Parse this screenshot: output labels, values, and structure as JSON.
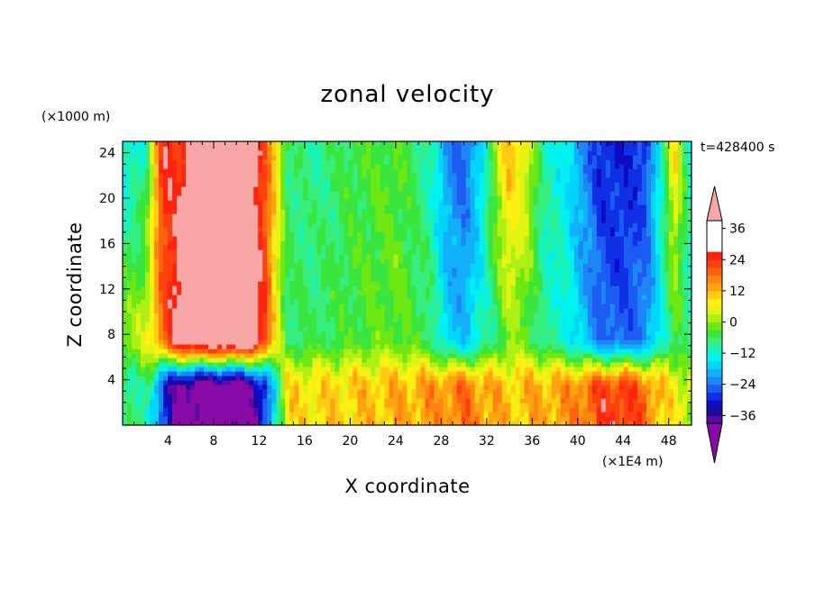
{
  "chart_data": {
    "type": "heatmap",
    "title": "zonal velocity",
    "xlabel": "X coordinate",
    "ylabel": "Z coordinate",
    "x_units": "(×1E4 m)",
    "y_units": "(×1000 m)",
    "time_label": "t=428400 s",
    "xlim": [
      0,
      50
    ],
    "ylim": [
      0,
      25
    ],
    "xticks": [
      4,
      8,
      12,
      16,
      20,
      24,
      28,
      32,
      36,
      40,
      44,
      48
    ],
    "yticks": [
      4,
      8,
      12,
      16,
      20,
      24
    ],
    "colorbar": {
      "levels": [
        -42,
        -39,
        -36,
        -33,
        -30,
        -27,
        -24,
        -21,
        -18,
        -15,
        -12,
        -9,
        -6,
        -3,
        0,
        3,
        6,
        9,
        12,
        15,
        18,
        21,
        24,
        27,
        30,
        33,
        36,
        39,
        42
      ],
      "colors": [
        "#8a0aa8",
        "#5e0aa2",
        "#1c0a9a",
        "#0c0cc4",
        "#1030e6",
        "#1c5cf2",
        "#1c86f6",
        "#12b0f8",
        "#00d6fa",
        "#00f2f0",
        "#18f2b4",
        "#36ee7e",
        "#3ae63e",
        "#6ee812",
        "#acf014",
        "#e2f414",
        "#fff012",
        "#ffcc12",
        "#ffa410",
        "#ff8410",
        "#ff620e",
        "#ff400e",
        "#ff2410",
        "#f8a6a6"
      ],
      "tick_labels": [
        "36",
        "24",
        "12",
        "0",
        "−12",
        "−24",
        "−36"
      ],
      "tick_values": [
        36,
        24,
        12,
        0,
        -12,
        -24,
        -36
      ],
      "extend": "both"
    },
    "column_profiles": [
      {
        "x": 0,
        "surface": -10,
        "mid": 0,
        "top": -15
      },
      {
        "x": 2,
        "surface": -6,
        "mid": 3,
        "top": -11
      },
      {
        "x": 3.5,
        "surface": -28,
        "mid": 18,
        "top": 26
      },
      {
        "x": 5,
        "surface": -40,
        "mid": 32,
        "top": 24
      },
      {
        "x": 7,
        "surface": -44,
        "mid": 36,
        "top": 36
      },
      {
        "x": 9,
        "surface": -45,
        "mid": 37,
        "top": 37
      },
      {
        "x": 11,
        "surface": -42,
        "mid": 36,
        "top": 36
      },
      {
        "x": 12.5,
        "surface": -30,
        "mid": 24,
        "top": 20
      },
      {
        "x": 13.5,
        "surface": -10,
        "mid": 5,
        "top": 9
      },
      {
        "x": 14.5,
        "surface": 8,
        "mid": -6,
        "top": -7
      },
      {
        "x": 17,
        "surface": 9,
        "mid": -6,
        "top": -9
      },
      {
        "x": 20,
        "surface": 10,
        "mid": -4,
        "top": -5
      },
      {
        "x": 24,
        "surface": 12,
        "mid": -2,
        "top": -3
      },
      {
        "x": 27,
        "surface": 14,
        "mid": -6,
        "top": -10
      },
      {
        "x": 28.5,
        "surface": 16,
        "mid": -16,
        "top": -22
      },
      {
        "x": 30,
        "surface": 18,
        "mid": -18,
        "top": -26
      },
      {
        "x": 31.5,
        "surface": 15,
        "mid": -12,
        "top": -16
      },
      {
        "x": 33,
        "surface": 12,
        "mid": -6,
        "top": 4
      },
      {
        "x": 34,
        "surface": 10,
        "mid": 0,
        "top": 13
      },
      {
        "x": 35.5,
        "surface": 12,
        "mid": -3,
        "top": 5
      },
      {
        "x": 37,
        "surface": 13,
        "mid": -9,
        "top": -10
      },
      {
        "x": 39,
        "surface": 14,
        "mid": -12,
        "top": -14
      },
      {
        "x": 40.5,
        "surface": 18,
        "mid": -18,
        "top": -22
      },
      {
        "x": 42,
        "surface": 22,
        "mid": -24,
        "top": -30
      },
      {
        "x": 44,
        "surface": 24,
        "mid": -26,
        "top": -30
      },
      {
        "x": 46,
        "surface": 18,
        "mid": -22,
        "top": -28
      },
      {
        "x": 47.5,
        "surface": 10,
        "mid": -12,
        "top": -8
      },
      {
        "x": 48.5,
        "surface": 6,
        "mid": -4,
        "top": 10
      },
      {
        "x": 50,
        "surface": 4,
        "mid": -10,
        "top": -14
      }
    ]
  }
}
